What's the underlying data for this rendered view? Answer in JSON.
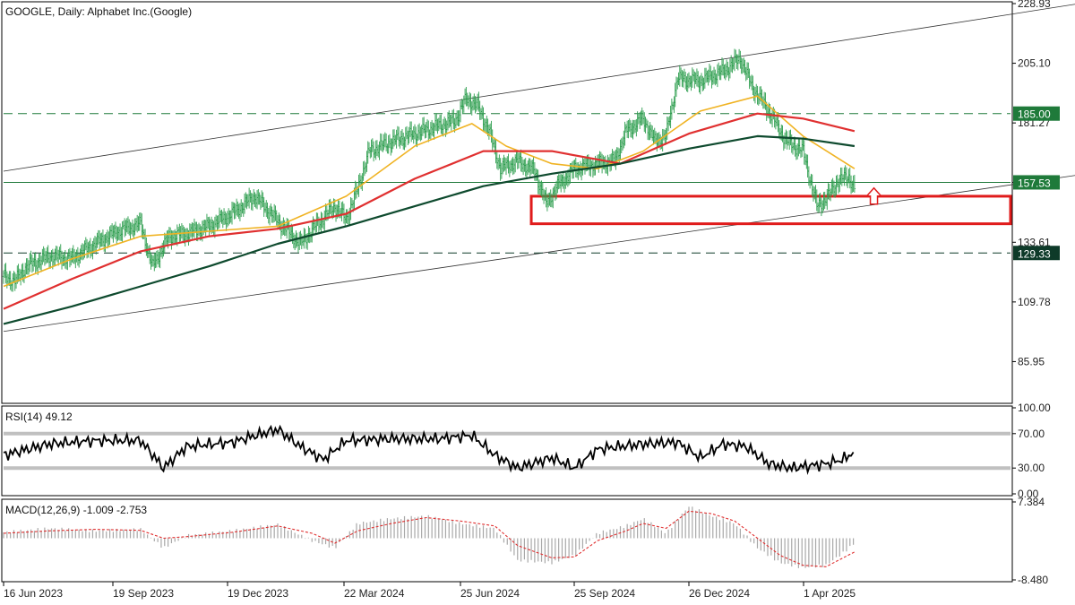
{
  "header": {
    "main": "GOOGLE, Daily:  Alphabet Inc.(Google)",
    "rsi": "RSI(14) 49.12",
    "macd": "MACD(12,26,9) -1.009 -2.753"
  },
  "colors": {
    "bg": "#ffffff",
    "axis": "#000000",
    "candle": "#2e9e4f",
    "ma_fast": "#f0b323",
    "ma_mid": "#e03030",
    "ma_slow": "#0e4a2e",
    "support_box": "#e01b1b",
    "arrow": "#e01b1b",
    "label_green_bg": "#1f7a3a",
    "label_dark_bg": "#0e3a29",
    "rsi_line": "#000000",
    "rsi_levels": "#c0c0c0",
    "macd_hist": "#a8a8a8",
    "macd_signal": "#e03030"
  },
  "chart_data": {
    "type": "candlestick",
    "symbol": "GOOGLE",
    "timeframe": "Daily",
    "title": "Alphabet Inc.(Google)",
    "price_axis": {
      "range": [
        70,
        228.93
      ],
      "ticks": [
        "228.93",
        "205.10",
        "181.27",
        "157.53",
        "133.61",
        "109.78",
        "85.95"
      ]
    },
    "x_axis": {
      "labels": [
        "16 Jun 2023",
        "19 Sep 2023",
        "19 Dec 2023",
        "22 Mar 2024",
        "25 Jun 2024",
        "25 Sep 2024",
        "26 Dec 2024",
        "1 Apr 2025"
      ]
    },
    "price_path": {
      "description": "approximate close path, x = trading-day index, y = price",
      "points": [
        [
          0,
          120
        ],
        [
          10,
          118
        ],
        [
          20,
          124
        ],
        [
          40,
          128
        ],
        [
          60,
          127
        ],
        [
          80,
          133
        ],
        [
          100,
          138
        ],
        [
          120,
          141
        ],
        [
          130,
          124
        ],
        [
          145,
          136
        ],
        [
          160,
          137
        ],
        [
          180,
          140
        ],
        [
          200,
          145
        ],
        [
          220,
          152
        ],
        [
          240,
          142
        ],
        [
          260,
          133
        ],
        [
          275,
          141
        ],
        [
          290,
          148
        ],
        [
          300,
          143
        ],
        [
          310,
          155
        ],
        [
          320,
          170
        ],
        [
          340,
          174
        ],
        [
          360,
          177
        ],
        [
          380,
          180
        ],
        [
          395,
          182
        ],
        [
          405,
          191
        ],
        [
          415,
          188
        ],
        [
          425,
          178
        ],
        [
          435,
          163
        ],
        [
          450,
          166
        ],
        [
          465,
          162
        ],
        [
          475,
          149
        ],
        [
          485,
          156
        ],
        [
          500,
          163
        ],
        [
          520,
          165
        ],
        [
          535,
          166
        ],
        [
          545,
          178
        ],
        [
          560,
          183
        ],
        [
          570,
          174
        ],
        [
          580,
          176
        ],
        [
          590,
          199
        ],
        [
          610,
          198
        ],
        [
          630,
          202
        ],
        [
          645,
          207
        ],
        [
          655,
          196
        ],
        [
          670,
          186
        ],
        [
          685,
          174
        ],
        [
          700,
          170
        ],
        [
          712,
          148
        ],
        [
          722,
          152
        ],
        [
          730,
          158
        ],
        [
          740,
          160
        ],
        [
          745,
          155
        ]
      ]
    },
    "moving_averages": [
      {
        "color": "#f0b323",
        "points": [
          [
            0,
            116
          ],
          [
            60,
            127
          ],
          [
            120,
            136
          ],
          [
            180,
            138
          ],
          [
            240,
            140
          ],
          [
            300,
            152
          ],
          [
            360,
            172
          ],
          [
            410,
            181
          ],
          [
            440,
            172
          ],
          [
            480,
            165
          ],
          [
            520,
            163
          ],
          [
            560,
            170
          ],
          [
            610,
            186
          ],
          [
            660,
            192
          ],
          [
            700,
            176
          ],
          [
            745,
            163
          ]
        ]
      },
      {
        "color": "#e03030",
        "points": [
          [
            0,
            107
          ],
          [
            60,
            119
          ],
          [
            120,
            130
          ],
          [
            180,
            136
          ],
          [
            240,
            139
          ],
          [
            300,
            145
          ],
          [
            360,
            159
          ],
          [
            420,
            170
          ],
          [
            480,
            170
          ],
          [
            540,
            165
          ],
          [
            600,
            177
          ],
          [
            660,
            185
          ],
          [
            700,
            183
          ],
          [
            745,
            178
          ]
        ]
      },
      {
        "color": "#0e4a2e",
        "points": [
          [
            0,
            101
          ],
          [
            60,
            108
          ],
          [
            120,
            116
          ],
          [
            180,
            124
          ],
          [
            240,
            133
          ],
          [
            300,
            140
          ],
          [
            360,
            148
          ],
          [
            420,
            156
          ],
          [
            480,
            161
          ],
          [
            540,
            165
          ],
          [
            600,
            171
          ],
          [
            660,
            176
          ],
          [
            700,
            175
          ],
          [
            745,
            172
          ]
        ]
      }
    ],
    "horizontal_levels": [
      {
        "value": 185.0,
        "label": "185.00",
        "style": "dashed",
        "label_color": "#1f7a3a"
      },
      {
        "value": 157.53,
        "label": "157.53",
        "style": "solid",
        "label_color": "#1f7a3a"
      },
      {
        "value": 129.33,
        "label": "129.33",
        "style": "dashed",
        "label_color": "#0e3a29"
      }
    ],
    "channel": {
      "upper": [
        [
          0,
          162
        ],
        [
          880,
          223
        ]
      ],
      "lower": [
        [
          0,
          98
        ],
        [
          880,
          155
        ]
      ]
    },
    "support_zone": {
      "x_start": 462,
      "x_end": 895,
      "price_low": 141,
      "price_high": 152
    },
    "arrow_up": {
      "x": 762,
      "price": 151
    },
    "rsi": {
      "label": "RSI(14) 49.12",
      "range": [
        0,
        100
      ],
      "ticks": [
        "100.00",
        "70.00",
        "30.00",
        "0.00"
      ],
      "levels": [
        30,
        70
      ],
      "points": [
        [
          0,
          45
        ],
        [
          40,
          58
        ],
        [
          80,
          62
        ],
        [
          120,
          62
        ],
        [
          140,
          30
        ],
        [
          160,
          55
        ],
        [
          200,
          60
        ],
        [
          240,
          75
        ],
        [
          260,
          55
        ],
        [
          280,
          40
        ],
        [
          300,
          62
        ],
        [
          340,
          64
        ],
        [
          380,
          64
        ],
        [
          410,
          68
        ],
        [
          430,
          45
        ],
        [
          450,
          30
        ],
        [
          480,
          42
        ],
        [
          500,
          30
        ],
        [
          520,
          52
        ],
        [
          560,
          58
        ],
        [
          590,
          60
        ],
        [
          610,
          42
        ],
        [
          630,
          58
        ],
        [
          650,
          55
        ],
        [
          670,
          35
        ],
        [
          690,
          30
        ],
        [
          720,
          35
        ],
        [
          735,
          40
        ],
        [
          745,
          49
        ]
      ]
    },
    "macd": {
      "label": "MACD(12,26,9) -1.009 -2.753",
      "range": [
        -8.48,
        7.384
      ],
      "ticks": [
        "7.384",
        "-8.480"
      ],
      "hist": [
        [
          0,
          1.2
        ],
        [
          40,
          2.0
        ],
        [
          80,
          1.5
        ],
        [
          120,
          1.8
        ],
        [
          140,
          -2.0
        ],
        [
          160,
          0.5
        ],
        [
          200,
          1.5
        ],
        [
          240,
          2.8
        ],
        [
          270,
          -0.5
        ],
        [
          290,
          -2.0
        ],
        [
          310,
          3.0
        ],
        [
          340,
          4.0
        ],
        [
          370,
          4.5
        ],
        [
          400,
          3.0
        ],
        [
          430,
          2.0
        ],
        [
          450,
          -4.5
        ],
        [
          480,
          -5.0
        ],
        [
          500,
          -3.5
        ],
        [
          520,
          1.0
        ],
        [
          545,
          2.5
        ],
        [
          560,
          4.0
        ],
        [
          580,
          1.0
        ],
        [
          600,
          6.5
        ],
        [
          620,
          4.5
        ],
        [
          640,
          3.0
        ],
        [
          660,
          -2.0
        ],
        [
          680,
          -5.0
        ],
        [
          700,
          -6.0
        ],
        [
          720,
          -5.5
        ],
        [
          735,
          -3.0
        ],
        [
          745,
          -1.0
        ]
      ],
      "signal": [
        [
          0,
          1.0
        ],
        [
          40,
          1.5
        ],
        [
          80,
          1.8
        ],
        [
          120,
          1.6
        ],
        [
          140,
          0.0
        ],
        [
          160,
          0.3
        ],
        [
          200,
          1.2
        ],
        [
          240,
          2.5
        ],
        [
          270,
          1.0
        ],
        [
          290,
          -1.0
        ],
        [
          310,
          1.5
        ],
        [
          340,
          3.0
        ],
        [
          370,
          4.2
        ],
        [
          400,
          3.5
        ],
        [
          430,
          2.5
        ],
        [
          450,
          -1.5
        ],
        [
          480,
          -4.0
        ],
        [
          500,
          -3.8
        ],
        [
          520,
          -0.5
        ],
        [
          545,
          1.5
        ],
        [
          560,
          3.0
        ],
        [
          580,
          2.0
        ],
        [
          600,
          5.5
        ],
        [
          620,
          5.0
        ],
        [
          640,
          3.5
        ],
        [
          660,
          0.0
        ],
        [
          680,
          -3.5
        ],
        [
          700,
          -5.5
        ],
        [
          720,
          -5.8
        ],
        [
          735,
          -4.0
        ],
        [
          745,
          -2.8
        ]
      ]
    }
  }
}
